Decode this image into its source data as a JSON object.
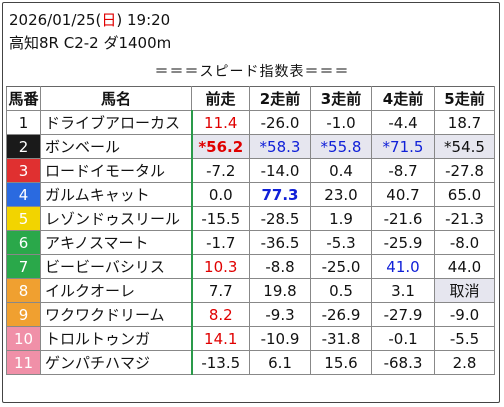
{
  "header": {
    "date": "2026/01/25",
    "weekday_open": "(",
    "weekday": "日",
    "weekday_close": ")",
    "time": "19:20",
    "race": "高知8R C2-2 ダ1400m",
    "subtitle": "＝＝＝スピード指数表＝＝＝"
  },
  "columns": [
    "馬番",
    "馬名",
    "前走",
    "2走前",
    "3走前",
    "4走前",
    "5走前"
  ],
  "colors": {
    "red_text": "#e00000",
    "blue_text": "#1020d8",
    "highlight_bg": "#e6e6ef",
    "name_divider": "#2a9a4a"
  },
  "rows": [
    {
      "num": "1",
      "name": "ドライブアローカス",
      "bg": "#ffffff",
      "fg": "#111111",
      "c": [
        {
          "v": "11.4",
          "s": "red"
        },
        {
          "v": "-26.0"
        },
        {
          "v": "-1.0"
        },
        {
          "v": "-4.4"
        },
        {
          "v": "18.7"
        }
      ]
    },
    {
      "num": "2",
      "name": "ボンベール",
      "bg": "#1a1a1a",
      "fg": "#ffffff",
      "c": [
        {
          "v": "*56.2",
          "s": "red bold shade"
        },
        {
          "v": "*58.3",
          "s": "blue shade"
        },
        {
          "v": "*55.8",
          "s": "blue shade"
        },
        {
          "v": "*71.5",
          "s": "blue shade"
        },
        {
          "v": "*54.5",
          "s": "shade"
        }
      ]
    },
    {
      "num": "3",
      "name": "ロードイモータル",
      "bg": "#e03030",
      "fg": "#ffffff",
      "c": [
        {
          "v": "-7.2"
        },
        {
          "v": "-14.0"
        },
        {
          "v": "0.4"
        },
        {
          "v": "-8.7"
        },
        {
          "v": "-27.8"
        }
      ]
    },
    {
      "num": "4",
      "name": "ガルムキャット",
      "bg": "#2a6ae0",
      "fg": "#ffffff",
      "c": [
        {
          "v": "0.0"
        },
        {
          "v": "77.3",
          "s": "blue bold"
        },
        {
          "v": "23.0"
        },
        {
          "v": "40.7"
        },
        {
          "v": "65.0"
        }
      ]
    },
    {
      "num": "5",
      "name": "レゾンドゥスリール",
      "bg": "#f2d400",
      "fg": "#ffffff",
      "c": [
        {
          "v": "-15.5"
        },
        {
          "v": "-28.5"
        },
        {
          "v": "1.9"
        },
        {
          "v": "-21.6"
        },
        {
          "v": "-21.3"
        }
      ]
    },
    {
      "num": "6",
      "name": "アキノスマート",
      "bg": "#2aa84a",
      "fg": "#ffffff",
      "c": [
        {
          "v": "-1.7"
        },
        {
          "v": "-36.5"
        },
        {
          "v": "-5.3"
        },
        {
          "v": "-25.9"
        },
        {
          "v": "-8.0"
        }
      ]
    },
    {
      "num": "7",
      "name": "ビービーバシリス",
      "bg": "#2aa84a",
      "fg": "#ffffff",
      "c": [
        {
          "v": "10.3",
          "s": "red"
        },
        {
          "v": "-8.8"
        },
        {
          "v": "-25.0"
        },
        {
          "v": "41.0",
          "s": "blue"
        },
        {
          "v": "44.0"
        }
      ]
    },
    {
      "num": "8",
      "name": "イルクオーレ",
      "bg": "#f0a030",
      "fg": "#ffffff",
      "c": [
        {
          "v": "7.7"
        },
        {
          "v": "19.8"
        },
        {
          "v": "0.5"
        },
        {
          "v": "3.1"
        },
        {
          "v": "取消",
          "s": "shade"
        }
      ]
    },
    {
      "num": "9",
      "name": "ワクワクドリーム",
      "bg": "#f0a030",
      "fg": "#ffffff",
      "c": [
        {
          "v": "8.2",
          "s": "red"
        },
        {
          "v": "-9.3"
        },
        {
          "v": "-26.9"
        },
        {
          "v": "-27.9"
        },
        {
          "v": "-9.0"
        }
      ]
    },
    {
      "num": "10",
      "name": "トロルトゥンガ",
      "bg": "#f090a8",
      "fg": "#ffffff",
      "c": [
        {
          "v": "14.1",
          "s": "red"
        },
        {
          "v": "-10.9"
        },
        {
          "v": "-31.8"
        },
        {
          "v": "-0.1"
        },
        {
          "v": "-5.5"
        }
      ]
    },
    {
      "num": "11",
      "name": "ゲンパチハマジ",
      "bg": "#f090a8",
      "fg": "#ffffff",
      "c": [
        {
          "v": "-13.5"
        },
        {
          "v": "6.1"
        },
        {
          "v": "15.6"
        },
        {
          "v": "-68.3"
        },
        {
          "v": "2.8"
        }
      ]
    }
  ]
}
